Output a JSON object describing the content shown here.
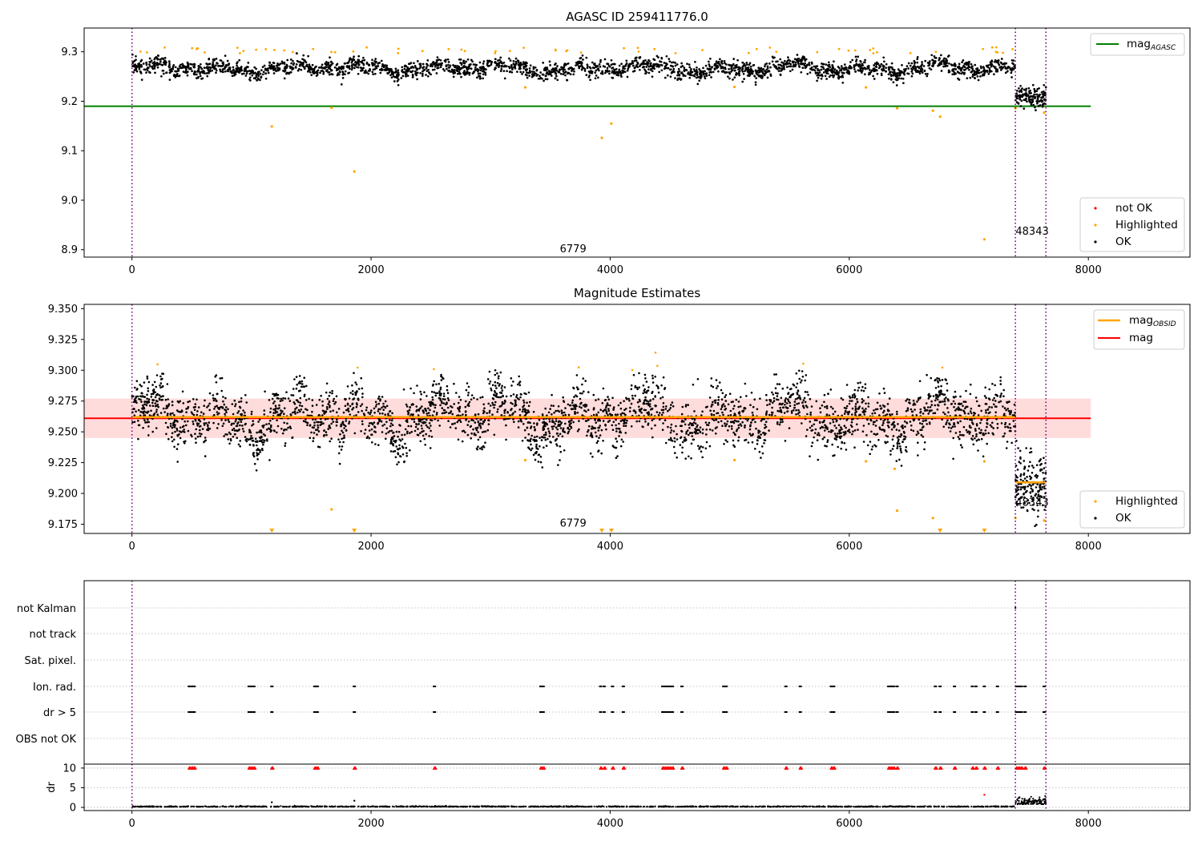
{
  "colors": {
    "ok": "#000000",
    "highlighted": "#ffa500",
    "not_ok": "#ff0000",
    "agasc_line": "#008000",
    "obsid_line": "#ffa500",
    "mag_line": "#ff0000",
    "band": "#ffc0c0",
    "obs_boundary": "#800080",
    "grid": "#b0b0b0"
  },
  "chart_data": [
    {
      "type": "scatter",
      "title": "AGASC ID 259411776.0",
      "xlim": [
        -400,
        8850
      ],
      "ylim": [
        8.885,
        9.348
      ],
      "xticks": [
        "0",
        "2000",
        "4000",
        "6000",
        "8000"
      ],
      "yticks": [
        "8.9",
        "9.0",
        "9.1",
        "9.2",
        "9.3"
      ],
      "mag_agasc": 9.19,
      "mag_agasc_range": [
        -400,
        8020
      ],
      "obs_boundaries": [
        0,
        7390,
        7645
      ],
      "obs_labels": [
        {
          "text": "6779",
          "x": 3690,
          "y": 8.895
        },
        {
          "text": "48343",
          "x": 7530,
          "y": 8.93
        }
      ],
      "segments": [
        {
          "x0": 0,
          "x1": 7390,
          "mean": 9.266,
          "spread": 0.009
        },
        {
          "x0": 7390,
          "x1": 7645,
          "mean": 9.209,
          "spread": 0.01
        }
      ],
      "highlighted_outliers": [
        [
          1170,
          9.149
        ],
        [
          1670,
          9.187
        ],
        [
          1860,
          9.058
        ],
        [
          3290,
          9.228
        ],
        [
          3930,
          9.126
        ],
        [
          4010,
          9.155
        ],
        [
          5040,
          9.229
        ],
        [
          6140,
          9.228
        ],
        [
          6400,
          9.186
        ],
        [
          6700,
          9.181
        ],
        [
          6760,
          9.169
        ],
        [
          7130,
          8.921
        ],
        [
          7390,
          9.186
        ],
        [
          7630,
          9.177
        ]
      ],
      "legend_top": [
        {
          "label": "mag",
          "sub": "AGASC"
        }
      ],
      "legend_bottom": [
        {
          "label": "not OK"
        },
        {
          "label": "Highlighted"
        },
        {
          "label": "OK"
        }
      ]
    },
    {
      "type": "scatter",
      "title": "Magnitude Estimates",
      "xlim": [
        -400,
        8850
      ],
      "ylim": [
        9.1675,
        9.3535
      ],
      "xticks": [
        "0",
        "2000",
        "4000",
        "6000",
        "8000"
      ],
      "yticks": [
        "9.175",
        "9.200",
        "9.225",
        "9.250",
        "9.275",
        "9.300",
        "9.325",
        "9.350"
      ],
      "mag": 9.261,
      "mag_range": [
        -400,
        8020
      ],
      "band": [
        9.245,
        9.277
      ],
      "obsid_levels": [
        {
          "x0": 0,
          "x1": 7390,
          "mag": 9.262
        },
        {
          "x0": 7390,
          "x1": 7645,
          "mag": 9.209
        }
      ],
      "obs_boundaries": [
        0,
        7390,
        7645
      ],
      "obs_labels": [
        {
          "text": "6779",
          "x": 3690,
          "y": 9.173
        },
        {
          "text": "48343",
          "x": 7530,
          "y": 9.19
        }
      ],
      "segments": [
        {
          "x0": 0,
          "x1": 7390,
          "mean": 9.262,
          "spread": 0.011
        },
        {
          "x0": 7390,
          "x1": 7645,
          "mean": 9.207,
          "spread": 0.012
        }
      ],
      "highlighted_outliers": [
        [
          1670,
          9.187
        ],
        [
          3290,
          9.227
        ],
        [
          5040,
          9.227
        ],
        [
          6140,
          9.226
        ],
        [
          6380,
          9.22
        ],
        [
          6400,
          9.186
        ],
        [
          6700,
          9.18
        ],
        [
          7130,
          9.226
        ],
        [
          7390,
          9.18
        ],
        [
          7630,
          9.178
        ]
      ],
      "clipped_markers": [
        1170,
        1860,
        3930,
        4010,
        6760,
        7130
      ],
      "legend_top": [
        {
          "label": "mag",
          "sub": "OBSID"
        },
        {
          "label": "mag",
          "sub": ""
        }
      ],
      "legend_bottom": [
        {
          "label": "Highlighted"
        },
        {
          "label": "OK"
        }
      ]
    },
    {
      "type": "scatter",
      "title": "",
      "xlim": [
        -400,
        8850
      ],
      "xticks": [
        "0",
        "2000",
        "4000",
        "6000",
        "8000"
      ],
      "categories": [
        "not Kalman",
        "not track",
        "Sat. pixel.",
        "Ion. rad.",
        "dr > 5",
        "OBS not OK"
      ],
      "flag_x": [
        480,
        500,
        520,
        980,
        1000,
        1020,
        1170,
        1530,
        1550,
        1860,
        2530,
        3420,
        3440,
        3920,
        3950,
        4020,
        4110,
        4440,
        4460,
        4480,
        4500,
        4520,
        4600,
        4950,
        4970,
        5470,
        5590,
        5850,
        5870,
        6330,
        6350,
        6370,
        6400,
        6720,
        6760,
        6880,
        7030,
        7060,
        7130,
        7240,
        7400,
        7420,
        7440,
        7470,
        7630
      ],
      "obs_boundaries": [
        0,
        7390,
        7645
      ]
    },
    {
      "type": "scatter",
      "title": "",
      "xlim": [
        -400,
        8850
      ],
      "ylim": [
        -0.8,
        11
      ],
      "ylabel": "dr",
      "xticks": [
        "0",
        "2000",
        "4000",
        "6000",
        "8000"
      ],
      "yticks": [
        "0",
        "5",
        "10"
      ],
      "clip_value": 10,
      "segments": [
        {
          "x0": 0,
          "x1": 7390,
          "mean": 0.15,
          "spread": 0.08
        },
        {
          "x0": 7390,
          "x1": 7645,
          "mean": 0.8,
          "spread": 0.5
        }
      ],
      "outliers": [
        [
          1170,
          1.3
        ],
        [
          1860,
          1.7
        ],
        [
          7130,
          3.2
        ]
      ],
      "obs_boundaries": [
        0,
        7390,
        7645
      ]
    }
  ]
}
